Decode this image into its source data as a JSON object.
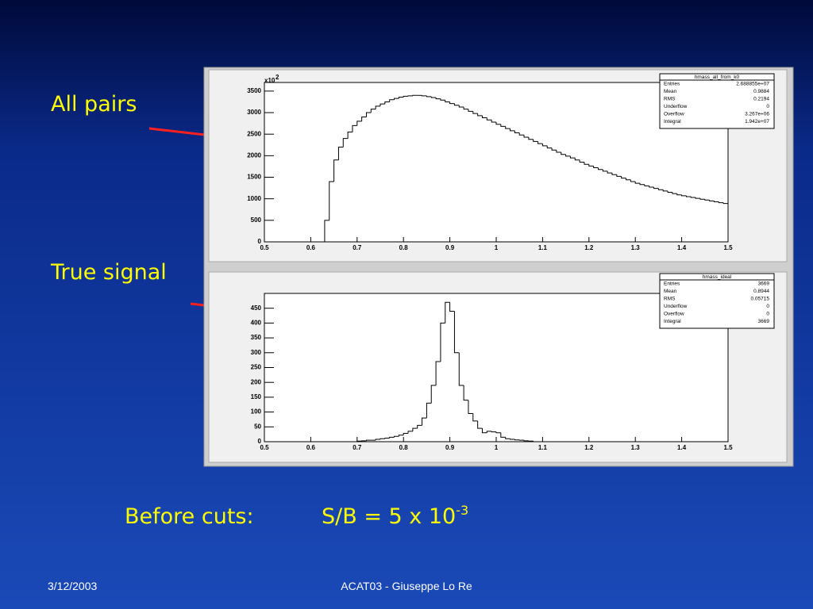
{
  "slide": {
    "label_top": "All pairs",
    "label_bottom": "True signal",
    "caption_left": "Before cuts:",
    "caption_right": "S/B = 5 x 10",
    "caption_power": "-3",
    "footer_date": "3/12/2003",
    "footer_center": "ACAT03 - Giuseppe Lo Re"
  },
  "chart_data": [
    {
      "type": "histogram",
      "color": "#000000",
      "stats": {
        "title": "hmass_all_from_k0",
        "rows": [
          [
            "Entries",
            "2.688855e+07"
          ],
          [
            "Mean",
            "0.9884"
          ],
          [
            "RMS",
            "0.2194"
          ],
          [
            "Underflow",
            "0"
          ],
          [
            "Overflow",
            "3.267e+06"
          ],
          [
            "Integral",
            "1.942e+07"
          ]
        ]
      },
      "y_multiplier": {
        "label": "x10",
        "power": "2"
      },
      "bins": [
        0.5,
        0.51,
        0.52,
        0.53,
        0.54,
        0.55,
        0.56,
        0.57,
        0.58,
        0.59,
        0.6,
        0.61,
        0.62,
        0.63,
        0.64,
        0.65,
        0.66,
        0.67,
        0.68,
        0.69,
        0.7,
        0.71,
        0.72,
        0.73,
        0.74,
        0.75,
        0.76,
        0.77,
        0.78,
        0.79,
        0.8,
        0.81,
        0.82,
        0.83,
        0.84,
        0.85,
        0.86,
        0.87,
        0.88,
        0.89,
        0.9,
        0.91,
        0.92,
        0.93,
        0.94,
        0.95,
        0.96,
        0.97,
        0.98,
        0.99,
        1,
        1.01,
        1.02,
        1.03,
        1.04,
        1.05,
        1.06,
        1.07,
        1.08,
        1.09,
        1.1,
        1.11,
        1.12,
        1.13,
        1.14,
        1.15,
        1.16,
        1.17,
        1.18,
        1.19,
        1.2,
        1.21,
        1.22,
        1.23,
        1.24,
        1.25,
        1.26,
        1.27,
        1.28,
        1.29,
        1.3,
        1.31,
        1.32,
        1.33,
        1.34,
        1.35,
        1.36,
        1.37,
        1.38,
        1.39,
        1.4,
        1.41,
        1.42,
        1.43,
        1.44,
        1.45,
        1.46,
        1.47,
        1.48,
        1.49,
        1.5
      ],
      "values": [
        0,
        0,
        0,
        0,
        0,
        0,
        0,
        0,
        0,
        0,
        0,
        0,
        0,
        500,
        1400,
        1900,
        2200,
        2400,
        2550,
        2700,
        2800,
        2900,
        3000,
        3080,
        3150,
        3200,
        3250,
        3300,
        3330,
        3360,
        3380,
        3390,
        3400,
        3400,
        3390,
        3370,
        3350,
        3320,
        3290,
        3250,
        3210,
        3170,
        3130,
        3080,
        3030,
        2980,
        2930,
        2880,
        2830,
        2780,
        2730,
        2680,
        2630,
        2580,
        2530,
        2480,
        2430,
        2380,
        2330,
        2280,
        2230,
        2180,
        2130,
        2080,
        2030,
        1990,
        1950,
        1900,
        1850,
        1800,
        1760,
        1720,
        1680,
        1640,
        1600,
        1560,
        1520,
        1480,
        1440,
        1400,
        1360,
        1330,
        1300,
        1270,
        1240,
        1210,
        1180,
        1150,
        1120,
        1090,
        1070,
        1050,
        1030,
        1010,
        990,
        970,
        950,
        930,
        910,
        890
      ],
      "xlim": [
        0.5,
        1.5
      ],
      "xticks": [
        0.5,
        0.6,
        0.7,
        0.8,
        0.9,
        1,
        1.1,
        1.2,
        1.3,
        1.4,
        1.5
      ],
      "ylim": [
        0,
        3700
      ],
      "yticks": [
        0,
        500,
        1000,
        1500,
        2000,
        2500,
        3000,
        3500
      ]
    },
    {
      "type": "histogram",
      "color": "#000000",
      "stats": {
        "title": "hmass_ideal",
        "rows": [
          [
            "Entries",
            "3669"
          ],
          [
            "Mean",
            "0.8944"
          ],
          [
            "RMS",
            "0.05715"
          ],
          [
            "Underflow",
            "0"
          ],
          [
            "Overflow",
            "0"
          ],
          [
            "Integral",
            "3669"
          ]
        ]
      },
      "bins": [
        0.5,
        0.51,
        0.52,
        0.53,
        0.54,
        0.55,
        0.56,
        0.57,
        0.58,
        0.59,
        0.6,
        0.61,
        0.62,
        0.63,
        0.64,
        0.65,
        0.66,
        0.67,
        0.68,
        0.69,
        0.7,
        0.71,
        0.72,
        0.73,
        0.74,
        0.75,
        0.76,
        0.77,
        0.78,
        0.79,
        0.8,
        0.81,
        0.82,
        0.83,
        0.84,
        0.85,
        0.86,
        0.87,
        0.88,
        0.89,
        0.9,
        0.91,
        0.92,
        0.93,
        0.94,
        0.95,
        0.96,
        0.97,
        0.98,
        0.99,
        1,
        1.01,
        1.02,
        1.03,
        1.04,
        1.05,
        1.06,
        1.07,
        1.08,
        1.09,
        1.1,
        1.11,
        1.12,
        1.13,
        1.14,
        1.15,
        1.16,
        1.17,
        1.18,
        1.19,
        1.2,
        1.21,
        1.22,
        1.23,
        1.24,
        1.25,
        1.26,
        1.27,
        1.28,
        1.29,
        1.3,
        1.31,
        1.32,
        1.33,
        1.34,
        1.35,
        1.36,
        1.37,
        1.38,
        1.39,
        1.4,
        1.41,
        1.42,
        1.43,
        1.44,
        1.45,
        1.46,
        1.47,
        1.48,
        1.49,
        1.5
      ],
      "values": [
        0,
        0,
        0,
        0,
        0,
        0,
        0,
        0,
        0,
        0,
        0,
        0,
        0,
        0,
        0,
        0,
        0,
        0,
        0,
        0,
        2,
        3,
        5,
        5,
        8,
        10,
        12,
        15,
        18,
        22,
        28,
        35,
        45,
        55,
        80,
        130,
        190,
        270,
        400,
        470,
        440,
        300,
        190,
        140,
        95,
        70,
        45,
        30,
        35,
        33,
        30,
        15,
        10,
        8,
        6,
        5,
        3,
        2,
        0,
        0,
        0,
        0,
        0,
        0,
        0,
        0,
        0,
        0,
        0,
        0,
        0,
        0,
        0,
        0,
        0,
        0,
        0,
        0,
        0,
        0,
        0,
        0,
        0,
        0,
        0,
        0,
        0,
        0,
        0,
        0,
        0,
        0,
        0,
        0,
        0,
        0,
        0,
        0,
        0,
        0
      ],
      "xlim": [
        0.5,
        1.5
      ],
      "xticks": [
        0.5,
        0.6,
        0.7,
        0.8,
        0.9,
        1,
        1.1,
        1.2,
        1.3,
        1.4,
        1.5
      ],
      "ylim": [
        0,
        500
      ],
      "yticks": [
        0,
        50,
        100,
        150,
        200,
        250,
        300,
        350,
        400,
        450
      ]
    }
  ]
}
